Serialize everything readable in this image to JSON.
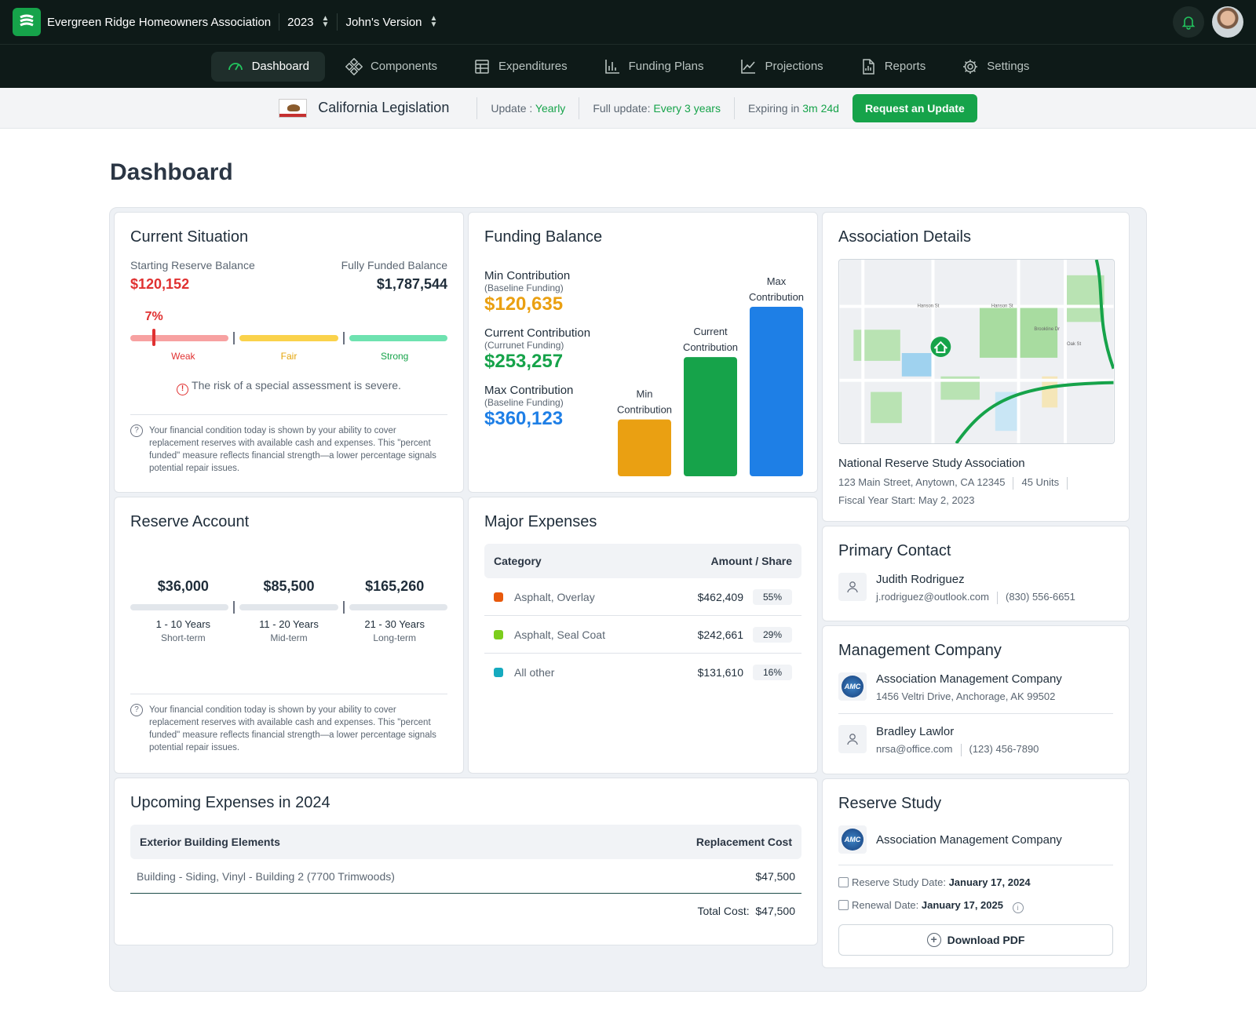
{
  "topbar": {
    "app_name": "Evergreen Ridge Homeowners Association",
    "year": "2023",
    "version": "John's Version"
  },
  "nav": {
    "items": [
      {
        "label": "Dashboard",
        "icon": "gauge-icon",
        "active": true
      },
      {
        "label": "Components",
        "icon": "components-icon"
      },
      {
        "label": "Expenditures",
        "icon": "table-icon"
      },
      {
        "label": "Funding Plans",
        "icon": "bar-chart-icon"
      },
      {
        "label": "Projections",
        "icon": "line-chart-icon"
      },
      {
        "label": "Reports",
        "icon": "report-icon"
      },
      {
        "label": "Settings",
        "icon": "gear-icon"
      }
    ]
  },
  "legislation": {
    "title": "California Legislation",
    "update_label": "Update : ",
    "update_value": "Yearly",
    "full_label": "Full update: ",
    "full_value": "Every 3 years",
    "expiring_label": "Expiring in ",
    "expiring_value": "3m 24d",
    "request_button": "Request an Update"
  },
  "page_title": "Dashboard",
  "current_situation": {
    "title": "Current Situation",
    "starting_label": "Starting Reserve Balance",
    "starting_value": "$120,152",
    "fully_label": "Fully Funded Balance",
    "fully_value": "$1,787,544",
    "percent": "7%",
    "percent_fraction": 0.07,
    "scale_labels": [
      "Weak",
      "Fair",
      "Strong"
    ],
    "risk": "The risk of a special assessment is severe.",
    "note": "Your financial condition today is shown by your ability to cover replacement reserves with available cash and expenses. This \"percent funded\" measure reflects financial strength—a lower percentage signals potential repair issues."
  },
  "funding_balance": {
    "title": "Funding Balance",
    "items": [
      {
        "label": "Min Contribution",
        "sub": "(Baseline Funding)",
        "value": "$120,635",
        "color": "#eaa012"
      },
      {
        "label": "Current Contribution",
        "sub": "(Currunet Funding)",
        "value": "$253,257",
        "color": "#16a34a"
      },
      {
        "label": "Max Contribution",
        "sub": "(Baseline Funding)",
        "value": "$360,123",
        "color": "#1e7fe6"
      }
    ],
    "bar_labels": [
      [
        "Min",
        "Contribution"
      ],
      [
        "Current",
        "Contribution"
      ],
      [
        "Max",
        "Contribution"
      ]
    ]
  },
  "chart_data": {
    "type": "bar",
    "categories": [
      "Min Contribution",
      "Current Contribution",
      "Max Contribution"
    ],
    "values": [
      120635,
      253257,
      360123
    ],
    "ylim": [
      0,
      360123
    ],
    "colors": [
      "#eaa012",
      "#16a34a",
      "#1e7fe6"
    ]
  },
  "association": {
    "title": "Association Details",
    "name": "National Reserve Study Association",
    "address": "123 Main Street, Anytown, CA 12345",
    "units": "45 Units",
    "fiscal": "Fiscal Year Start: May 2, 2023",
    "map_labels": [
      "Hanson St",
      "Hanson St",
      "Brookline Dr",
      "Oak St"
    ]
  },
  "reserve_account": {
    "title": "Reserve Account",
    "items": [
      {
        "value": "$36,000",
        "range": "1 - 10 Years",
        "term": "Short-term"
      },
      {
        "value": "$85,500",
        "range": "11 - 20 Years",
        "term": "Mid-term"
      },
      {
        "value": "$165,260",
        "range": "21 - 30 Years",
        "term": "Long-term"
      }
    ],
    "note": "Your financial condition today is shown by your ability to cover replacement reserves with available cash and expenses. This \"percent funded\" measure reflects financial strength—a lower percentage signals potential repair issues."
  },
  "major_expenses": {
    "title": "Major Expenses",
    "col_category": "Category",
    "col_amount": "Amount / Share",
    "rows": [
      {
        "name": "Asphalt, Overlay",
        "amount": "$462,409",
        "share": "55%",
        "color": "#e8590c"
      },
      {
        "name": "Asphalt, Seal Coat",
        "amount": "$242,661",
        "share": "29%",
        "color": "#7ccd1c"
      },
      {
        "name": "All other",
        "amount": "$131,610",
        "share": "16%",
        "color": "#15aabf"
      }
    ]
  },
  "primary_contact": {
    "title": "Primary Contact",
    "name": "Judith Rodriguez",
    "email": "j.rodriguez@outlook.com",
    "phone": "(830) 556-6651"
  },
  "management": {
    "title": "Management Company",
    "company": "Association Management Company",
    "company_address": "1456 Veltri Drive, Anchorage, AK 99502",
    "logo_text": "AMC",
    "person": "Bradley Lawlor",
    "email": "nrsa@office.com",
    "phone": "(123) 456-7890"
  },
  "upcoming": {
    "title": "Upcoming Expenses in 2024",
    "col_left": "Exterior Building Elements",
    "col_right": "Replacement Cost",
    "rows": [
      {
        "name": "Building - Siding, Vinyl - Building 2 (7700 Trimwoods)",
        "cost": "$47,500"
      }
    ],
    "total_label": "Total Cost:",
    "total_value": "$47,500"
  },
  "reserve_study": {
    "title": "Reserve Study",
    "company": "Association Management Company",
    "logo_text": "AMC",
    "study_label": "Reserve Study Date: ",
    "study_value": "January 17, 2024",
    "renewal_label": "Renewal Date: ",
    "renewal_value": "January 17, 2025",
    "download": "Download PDF"
  }
}
